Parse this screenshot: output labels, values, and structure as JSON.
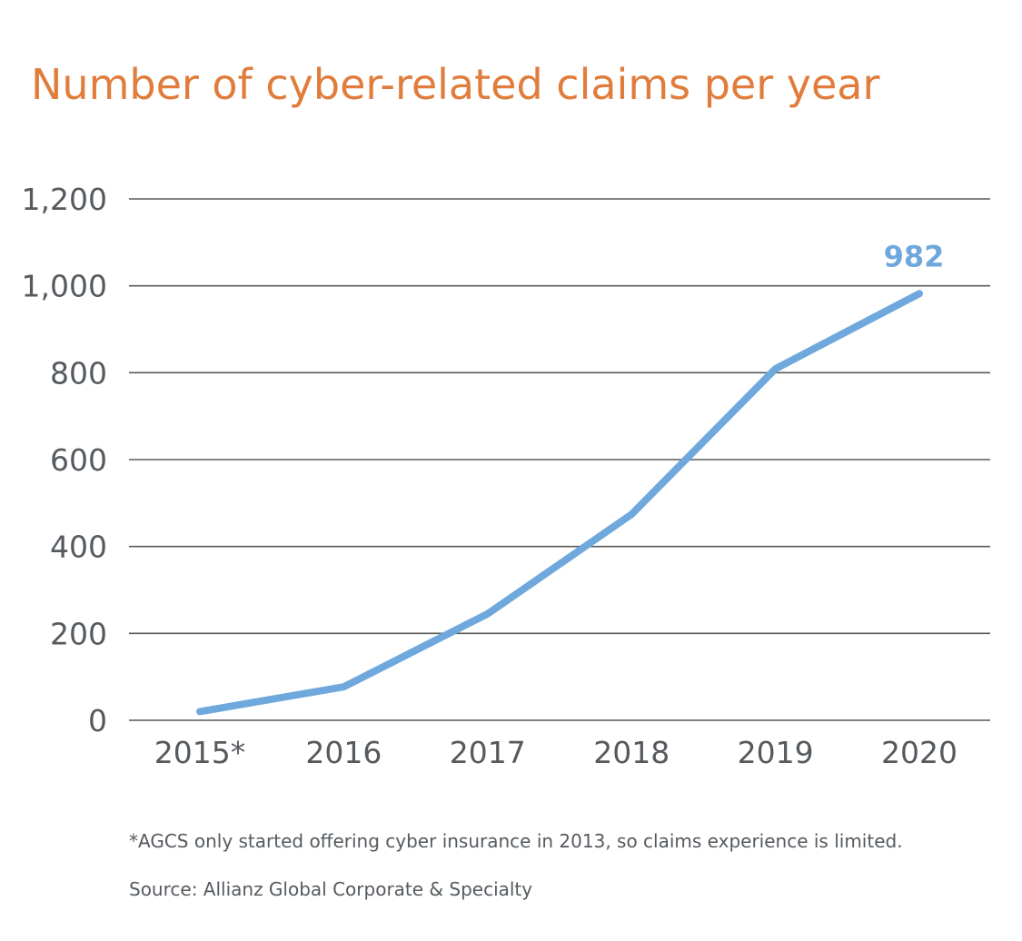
{
  "chart_data": {
    "type": "line",
    "title": "Number of cyber-related claims per year",
    "xlabel": "",
    "ylabel": "",
    "categories": [
      "2015*",
      "2016",
      "2017",
      "2018",
      "2019",
      "2020"
    ],
    "series": [
      {
        "name": "Cyber-related claims",
        "values": [
          20,
          77,
          245,
          474,
          809,
          982
        ],
        "color": "#6fa8dc"
      }
    ],
    "ylim": [
      0,
      1200
    ],
    "yticks": [
      0,
      200,
      400,
      600,
      800,
      1000,
      1200
    ],
    "ytick_labels": [
      "0",
      "200",
      "400",
      "600",
      "800",
      "1,000",
      "1,200"
    ],
    "grid": true,
    "annotations": [
      {
        "category": "2020",
        "value": 982,
        "text": "982"
      }
    ]
  },
  "notes": {
    "footnote": "*AGCS only started offering cyber insurance in 2013, so claims experience is limited.",
    "source": "Source: Allianz Global Corporate & Specialty"
  },
  "colors": {
    "title": "#e07d3c",
    "line": "#6fa8dc",
    "grid": "#5a5a5a",
    "text": "#555a5f"
  }
}
